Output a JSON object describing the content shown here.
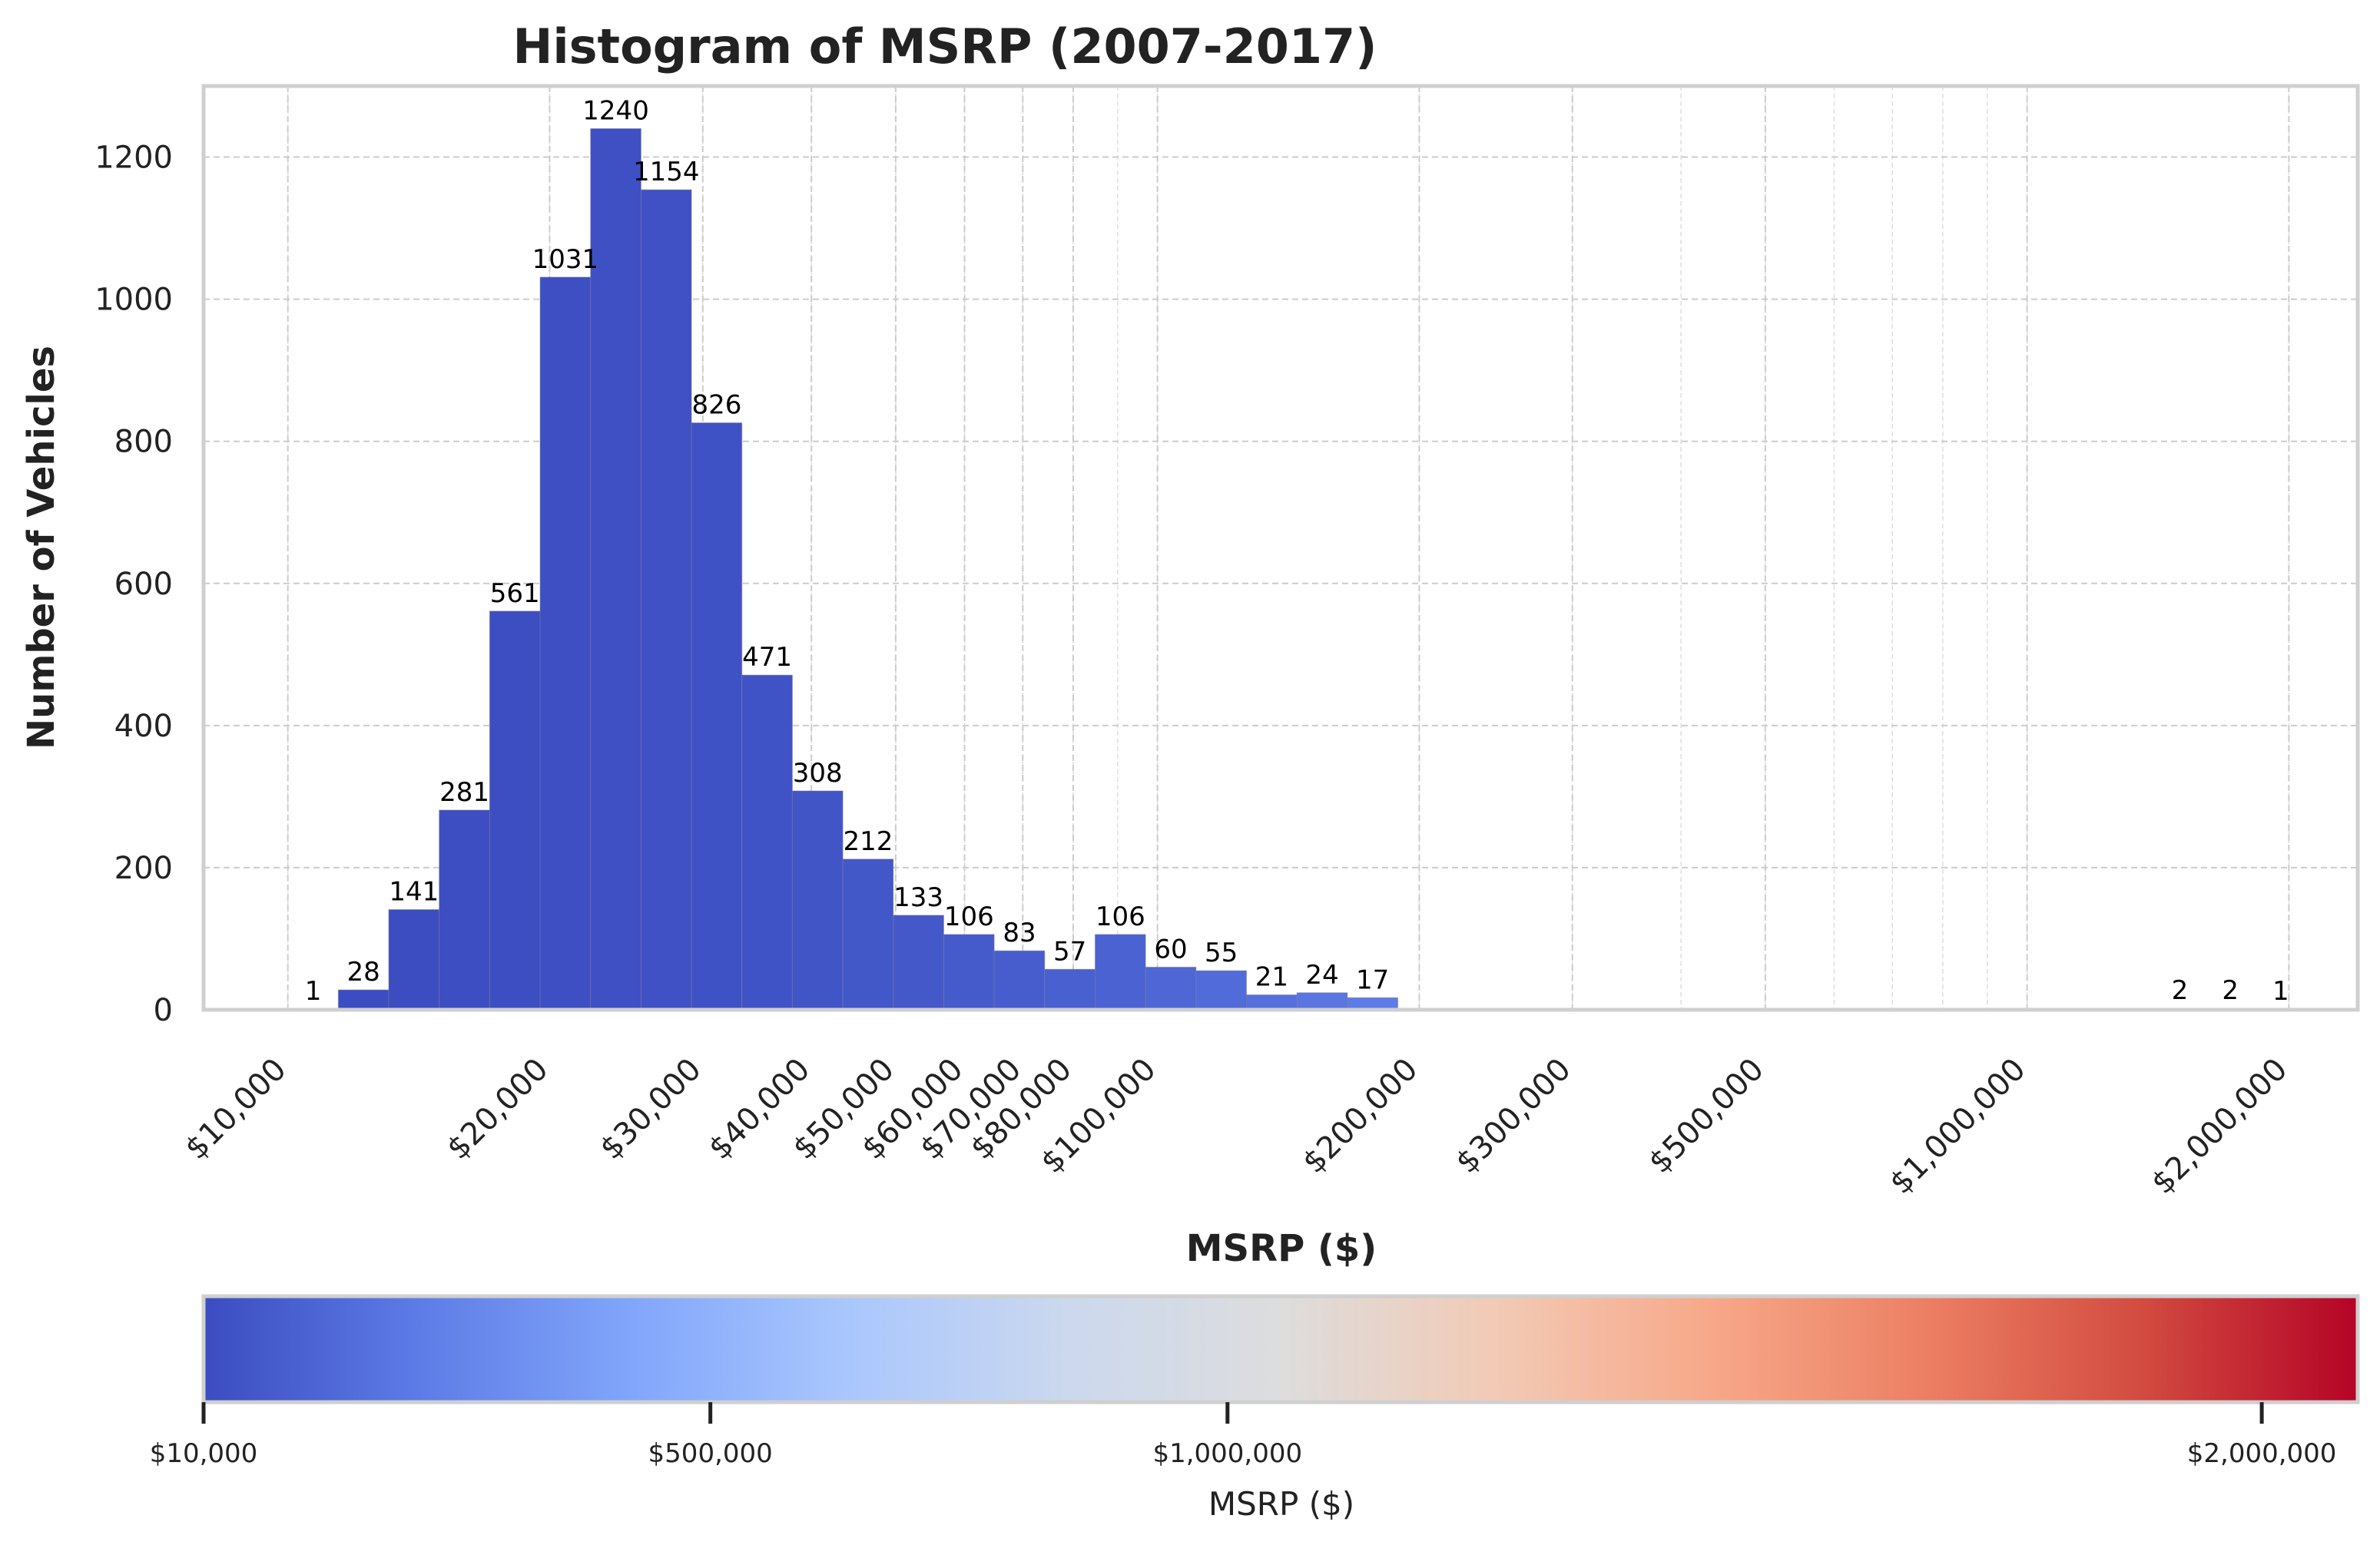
{
  "chart_data": [
    {
      "type": "bar",
      "title": "Histogram of MSRP (2007-2017)",
      "xlabel": "MSRP ($)",
      "ylabel": "Number of Vehicles",
      "x_scale": "log",
      "xlim": [
        8000,
        2400000
      ],
      "ylim": [
        0,
        1300
      ],
      "grid": true,
      "y_ticks": [
        0,
        200,
        400,
        600,
        800,
        1000,
        1200
      ],
      "y_tick_labels": [
        "0",
        "200",
        "400",
        "600",
        "800",
        "1000",
        "1200"
      ],
      "x_ticks": [
        10000,
        20000,
        30000,
        40000,
        50000,
        60000,
        70000,
        80000,
        100000,
        200000,
        300000,
        500000,
        1000000,
        2000000
      ],
      "x_tick_labels": [
        "$10,000",
        "$20,000",
        "$30,000",
        "$40,000",
        "$50,000",
        "$60,000",
        "$70,000",
        "$80,000",
        "$100,000",
        "$200,000",
        "$300,000",
        "$500,000",
        "$1,000,000",
        "$2,000,000"
      ],
      "bin_edges": [
        10000,
        11429,
        13062,
        14929,
        17063,
        19502,
        22289,
        25475,
        29116,
        33277,
        38033,
        43469,
        49682,
        56783,
        64899,
        74175,
        84776,
        96893,
        110742,
        126570,
        144660,
        165336,
        188967,
        215975,
        246844,
        282125,
        322448,
        368534,
        421208,
        481410,
        550217,
        628858,
        718738,
        821464,
        938873,
        1073063,
        1226434,
        1401726,
        1602071,
        1831052,
        2092772
      ],
      "values": [
        1,
        28,
        141,
        281,
        561,
        1031,
        1240,
        1154,
        826,
        471,
        308,
        212,
        133,
        106,
        83,
        57,
        106,
        60,
        55,
        21,
        24,
        17,
        0,
        0,
        0,
        0,
        0,
        0,
        0,
        0,
        0,
        0,
        0,
        0,
        0,
        0,
        0,
        2,
        2,
        1
      ],
      "data_labels": [
        "1",
        "28",
        "141",
        "281",
        "561",
        "1031",
        "1240",
        "1154",
        "826",
        "471",
        "308",
        "212",
        "133",
        "106",
        "83",
        "57",
        "106",
        "60",
        "55",
        "21",
        "24",
        "17",
        "",
        "",
        "",
        "",
        "",
        "",
        "",
        "",
        "",
        "",
        "",
        "",
        "",
        "",
        "",
        "2",
        "2",
        "1"
      ],
      "colormap": "coolwarm"
    },
    {
      "type": "colorbar",
      "label": "MSRP ($)",
      "range": [
        10000,
        2092772
      ],
      "ticks": [
        10000,
        500000,
        1000000,
        2000000
      ],
      "tick_labels": [
        "$10,000",
        "$500,000",
        "$1,000,000",
        "$2,000,000"
      ],
      "colors": [
        "#3b4cc0",
        "#5d7ce6",
        "#82a6fb",
        "#aac7fd",
        "#cbd8ee",
        "#dddddd",
        "#f2cab5",
        "#f7a889",
        "#ec7f63",
        "#d24b40",
        "#b40426"
      ]
    }
  ]
}
